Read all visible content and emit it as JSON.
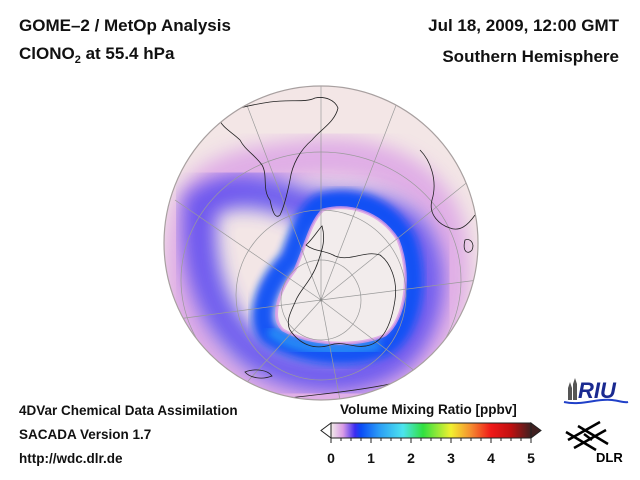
{
  "header": {
    "title_line1": "GOME–2 / MetOp Analysis",
    "species_main": "ClONO",
    "species_sub": "2",
    "species_suffix": " at 55.4 hPa",
    "datetime": "Jul 18, 2009, 12:00 GMT",
    "hemisphere": "Southern Hemisphere"
  },
  "footer": {
    "line1": "4DVar Chemical Data Assimilation",
    "line2": "SACADA Version 1.7",
    "line3": "http://wdc.dlr.de"
  },
  "colorbar": {
    "title": "Volume Mixing Ratio [ppbv]",
    "min": 0,
    "max": 5,
    "tick_labels": [
      "0",
      "1",
      "2",
      "3",
      "4",
      "5"
    ],
    "extend": "both",
    "stops": [
      {
        "v": 0.0,
        "c": "#f2ece9"
      },
      {
        "v": 0.3,
        "c": "#d99be6"
      },
      {
        "v": 0.6,
        "c": "#3c2cf0"
      },
      {
        "v": 0.75,
        "c": "#0a4cf5"
      },
      {
        "v": 1.2,
        "c": "#2a9cf6"
      },
      {
        "v": 1.8,
        "c": "#4ce4ee"
      },
      {
        "v": 2.3,
        "c": "#30e040"
      },
      {
        "v": 3.0,
        "c": "#f2f030"
      },
      {
        "v": 3.5,
        "c": "#f58c30"
      },
      {
        "v": 4.0,
        "c": "#f01818"
      },
      {
        "v": 4.5,
        "c": "#c01010"
      },
      {
        "v": 5.0,
        "c": "#402020"
      }
    ]
  },
  "map": {
    "projection": "orthographic",
    "center": "South Pole",
    "background_color": "#f2e4e4",
    "ocean_ring_color": "#d0c8c8"
  },
  "logos": {
    "riu": "RIU",
    "dlr": "DLR"
  }
}
